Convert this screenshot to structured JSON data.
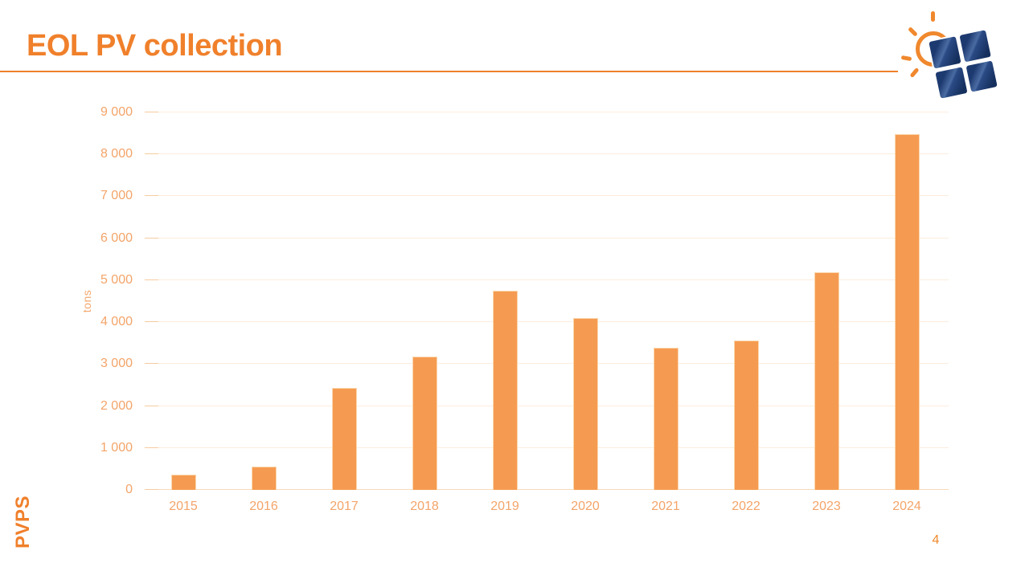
{
  "slide": {
    "title": "EOL PV collection",
    "sidebar_label": "PVPS",
    "page_number": "4"
  },
  "logo": {
    "name": "iea-pvps-sun-and-panel-logo",
    "sun_color": "#F0882D",
    "panel_color": "#1E3C78"
  },
  "chart_data": {
    "type": "bar",
    "title": "",
    "categories": [
      "2015",
      "2016",
      "2017",
      "2018",
      "2019",
      "2020",
      "2021",
      "2022",
      "2023",
      "2024"
    ],
    "values": [
      370,
      550,
      2440,
      3170,
      4740,
      4100,
      3390,
      3570,
      5190,
      8490
    ],
    "xlabel": "",
    "ylabel": "tons",
    "ylim": [
      0,
      9000
    ],
    "ytick_step": 1000,
    "ytick_labels": [
      "0",
      "1 000",
      "2 000",
      "3 000",
      "4 000",
      "5 000",
      "6 000",
      "7 000",
      "8 000",
      "9 000"
    ],
    "grid": true,
    "legend": "none",
    "bar_color": "#F59B51",
    "bar_border_color": "#FBD7AE",
    "axis_label_color": "#F3A469",
    "gridline_color": "#FCEDDE",
    "baseline_color": "#F8D9BC"
  }
}
